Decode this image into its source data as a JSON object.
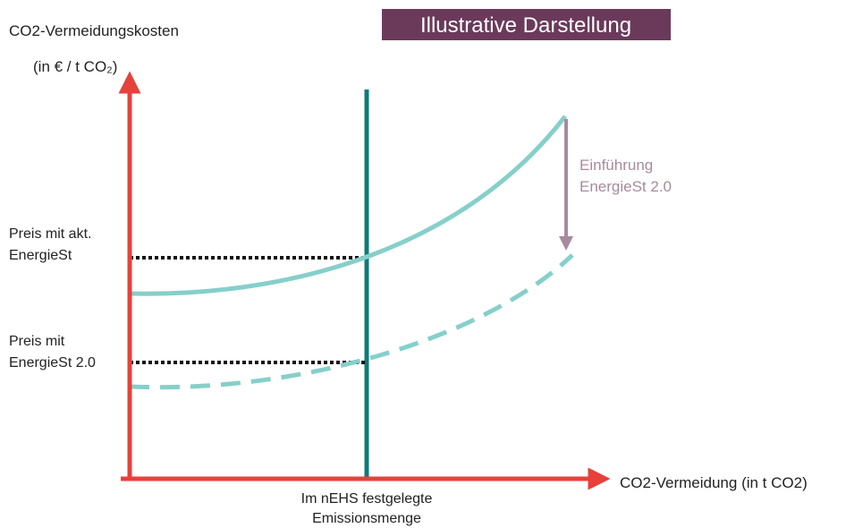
{
  "title": "Illustrative Darstellung",
  "y_axis": {
    "label": "CO2-Vermeidungskosten",
    "unit": "(in € / t CO₂)"
  },
  "x_axis": {
    "label": "CO2-Vermeidung (in t CO2)"
  },
  "vertical_line_label": [
    "Im nEHS festgelegte",
    "Emissionsmenge"
  ],
  "price_current": [
    "Preis mit akt.",
    "EnergieSt"
  ],
  "price_new": [
    "Preis mit",
    "EnergieSt 2.0"
  ],
  "shift_label": [
    "Einführung",
    "EnergieSt 2.0"
  ]
}
